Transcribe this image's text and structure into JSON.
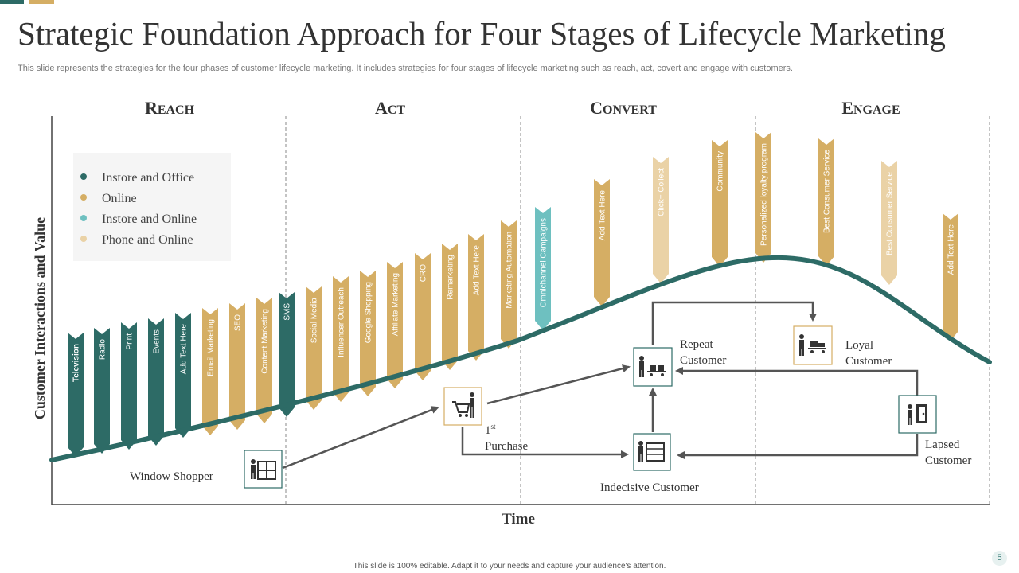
{
  "title": "Strategic Foundation Approach for Four Stages of Lifecycle Marketing",
  "subtitle": "This slide represents the strategies for the four phases of customer lifecycle marketing. It includes strategies for four stages of lifecycle marketing such as reach, act, covert and engage with customers.",
  "stages": [
    "Reach",
    "Act",
    "Convert",
    "Engage"
  ],
  "y_axis_label": "Customer Interactions and Value",
  "x_axis_label": "Time",
  "legend": [
    {
      "label": "Instore and Office",
      "color": "#2d6b66"
    },
    {
      "label": "Online",
      "color": "#d5ae64"
    },
    {
      "label": "Instore and Online",
      "color": "#6ec0c0"
    },
    {
      "label": "Phone and Online",
      "color": "#ead2a6"
    }
  ],
  "ribbons": [
    {
      "label": "Television",
      "cat": 0,
      "bold": true
    },
    {
      "label": "Radio",
      "cat": 0
    },
    {
      "label": "Print",
      "cat": 0
    },
    {
      "label": "Events",
      "cat": 0
    },
    {
      "label": "Add Text Here",
      "cat": 0
    },
    {
      "label": "Email  Marketing",
      "cat": 1
    },
    {
      "label": "SEO",
      "cat": 1
    },
    {
      "label": "Content Marketing",
      "cat": 1
    },
    {
      "label": "SMS",
      "cat": 0
    },
    {
      "label": "Social Media",
      "cat": 1
    },
    {
      "label": "Influencer Outreach",
      "cat": 1
    },
    {
      "label": "Google Shopping",
      "cat": 1
    },
    {
      "label": "Affiliate Marketing",
      "cat": 1
    },
    {
      "label": "CRO",
      "cat": 1
    },
    {
      "label": "Remarketing",
      "cat": 1
    },
    {
      "label": "Add Text Here",
      "cat": 1
    },
    {
      "label": "Marketing Automation",
      "cat": 1
    },
    {
      "label": "Omnichannel Campaigns",
      "cat": 2
    },
    {
      "label": "Add Text Here",
      "cat": 1
    },
    {
      "label": "Click+ Collect",
      "cat": 3
    },
    {
      "label": "Community",
      "cat": 1
    },
    {
      "label": "Personalized loyalty program",
      "cat": 1
    },
    {
      "label": "Best Consumer Service",
      "cat": 1
    },
    {
      "label": "Best Consumer Service",
      "cat": 3
    },
    {
      "label": "Add Text Here",
      "cat": 1
    }
  ],
  "nodes": {
    "window_shopper": "Window  Shopper",
    "first_purchase_sup": "st",
    "first_purchase_num": "1",
    "first_purchase": "Purchase",
    "indecisive": "Indecisive  Customer",
    "repeat_1": "Repeat",
    "repeat_2": "Customer",
    "loyal_1": "Loyal",
    "loyal_2": "Customer",
    "lapsed_1": "Lapsed",
    "lapsed_2": "Customer"
  },
  "footer": "This slide is 100% editable.  Adapt it to your needs and capture your audience's attention.",
  "page_number": "5"
}
